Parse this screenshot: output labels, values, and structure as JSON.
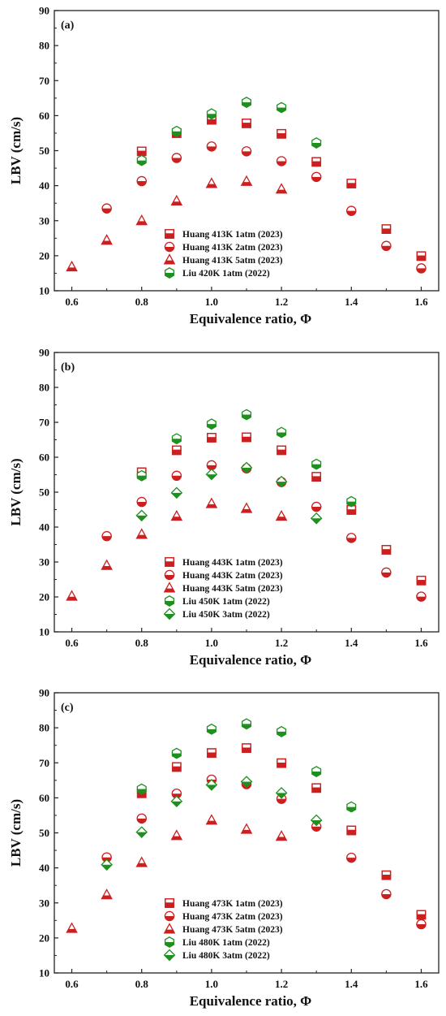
{
  "chart_data": [
    {
      "type": "scatter",
      "panel_label": "(a)",
      "xlabel": "Equivalence ratio, Φ",
      "ylabel": "LBV (cm/s)",
      "xlim": [
        0.55,
        1.65
      ],
      "ylim": [
        10,
        90
      ],
      "xticks": [
        0.6,
        0.8,
        1.0,
        1.2,
        1.4,
        1.6
      ],
      "yticks": [
        10,
        20,
        30,
        40,
        50,
        60,
        70,
        80,
        90
      ],
      "grid": false,
      "legend_position": "bottom-center",
      "series": [
        {
          "name": "Huang 413K 1atm (2023)",
          "marker": "square",
          "color": "#cc1f1f",
          "x": [
            0.8,
            0.9,
            1.0,
            1.1,
            1.2,
            1.3,
            1.4,
            1.5,
            1.6
          ],
          "y": [
            49.8,
            55.0,
            58.8,
            57.8,
            54.8,
            46.8,
            40.6,
            27.6,
            19.9
          ]
        },
        {
          "name": "Huang 413K 2atm (2023)",
          "marker": "circle",
          "color": "#cc1f1f",
          "x": [
            0.7,
            0.8,
            0.9,
            1.0,
            1.1,
            1.2,
            1.3,
            1.4,
            1.5,
            1.6
          ],
          "y": [
            33.5,
            41.3,
            47.9,
            51.2,
            49.8,
            47.0,
            42.5,
            32.8,
            22.8,
            16.4
          ]
        },
        {
          "name": "Huang 413K 5atm (2023)",
          "marker": "triangle",
          "color": "#cc1f1f",
          "x": [
            0.6,
            0.7,
            0.8,
            0.9,
            1.0,
            1.1,
            1.2
          ],
          "y": [
            16.8,
            24.4,
            30.0,
            35.6,
            40.6,
            41.2,
            39.0
          ]
        },
        {
          "name": "Liu 420K 1atm (2022)",
          "marker": "hexagon",
          "color": "#1f8f1f",
          "x": [
            0.8,
            0.9,
            1.0,
            1.1,
            1.2,
            1.3
          ],
          "y": [
            47.2,
            55.5,
            60.5,
            63.8,
            62.3,
            52.2
          ]
        }
      ]
    },
    {
      "type": "scatter",
      "panel_label": "(b)",
      "xlabel": "Equivalence ratio, Φ",
      "ylabel": "LBV (cm/s)",
      "xlim": [
        0.55,
        1.65
      ],
      "ylim": [
        10,
        90
      ],
      "xticks": [
        0.6,
        0.8,
        1.0,
        1.2,
        1.4,
        1.6
      ],
      "yticks": [
        10,
        20,
        30,
        40,
        50,
        60,
        70,
        80,
        90
      ],
      "grid": false,
      "legend_position": "bottom-center",
      "series": [
        {
          "name": "Huang 443K 1atm (2023)",
          "marker": "square",
          "color": "#cc1f1f",
          "x": [
            0.8,
            0.9,
            1.0,
            1.1,
            1.2,
            1.3,
            1.4,
            1.5,
            1.6
          ],
          "y": [
            55.7,
            62.0,
            65.6,
            65.7,
            62.0,
            54.4,
            44.9,
            33.5,
            24.7
          ]
        },
        {
          "name": "Huang 443K 2atm (2023)",
          "marker": "circle",
          "color": "#cc1f1f",
          "x": [
            0.7,
            0.8,
            0.9,
            1.0,
            1.1,
            1.2,
            1.3,
            1.4,
            1.5,
            1.6
          ],
          "y": [
            37.4,
            47.2,
            54.7,
            57.7,
            56.8,
            52.9,
            45.8,
            36.9,
            27.0,
            20.1
          ]
        },
        {
          "name": "Huang 443K 5atm (2023)",
          "marker": "triangle",
          "color": "#cc1f1f",
          "x": [
            0.6,
            0.7,
            0.8,
            0.9,
            1.0,
            1.1,
            1.2
          ],
          "y": [
            20.2,
            29.0,
            37.9,
            43.1,
            46.7,
            45.3,
            43.1
          ]
        },
        {
          "name": "Liu 450K 1atm (2022)",
          "marker": "hexagon",
          "color": "#1f8f1f",
          "x": [
            0.8,
            0.9,
            1.0,
            1.1,
            1.2,
            1.3,
            1.4
          ],
          "y": [
            54.7,
            65.3,
            69.5,
            72.2,
            67.1,
            58.0,
            47.3
          ]
        },
        {
          "name": "Liu 450K 3atm (2022)",
          "marker": "diamond",
          "color": "#1f8f1f",
          "x": [
            0.8,
            0.9,
            1.0,
            1.1,
            1.2,
            1.3
          ],
          "y": [
            43.3,
            49.8,
            55.1,
            57.0,
            53.0,
            42.5
          ]
        }
      ]
    },
    {
      "type": "scatter",
      "panel_label": "(c)",
      "xlabel": "Equivalence ratio, Φ",
      "ylabel": "LBV (cm/s)",
      "xlim": [
        0.55,
        1.65
      ],
      "ylim": [
        10,
        90
      ],
      "xticks": [
        0.6,
        0.8,
        1.0,
        1.2,
        1.4,
        1.6
      ],
      "yticks": [
        10,
        20,
        30,
        40,
        50,
        60,
        70,
        80,
        90
      ],
      "grid": false,
      "legend_position": "bottom-center",
      "series": [
        {
          "name": "Huang 473K 1atm (2023)",
          "marker": "square",
          "color": "#cc1f1f",
          "x": [
            0.8,
            0.9,
            1.0,
            1.1,
            1.2,
            1.3,
            1.4,
            1.5,
            1.6
          ],
          "y": [
            61.3,
            68.8,
            72.8,
            74.2,
            69.9,
            62.8,
            50.7,
            37.9,
            26.6
          ]
        },
        {
          "name": "Huang 473K 2atm (2023)",
          "marker": "circle",
          "color": "#cc1f1f",
          "x": [
            0.7,
            0.8,
            0.9,
            1.0,
            1.1,
            1.2,
            1.3,
            1.4,
            1.5,
            1.6
          ],
          "y": [
            43.0,
            54.1,
            61.2,
            65.2,
            63.9,
            59.7,
            51.8,
            42.9,
            32.5,
            23.9
          ]
        },
        {
          "name": "Huang 473K 5atm (2023)",
          "marker": "triangle",
          "color": "#cc1f1f",
          "x": [
            0.6,
            0.7,
            0.8,
            0.9,
            1.0,
            1.1,
            1.2
          ],
          "y": [
            22.7,
            32.3,
            41.5,
            49.2,
            53.6,
            51.0,
            49.0
          ]
        },
        {
          "name": "Liu 480K 1atm (2022)",
          "marker": "hexagon",
          "color": "#1f8f1f",
          "x": [
            0.8,
            0.9,
            1.0,
            1.1,
            1.2,
            1.3,
            1.4
          ],
          "y": [
            62.5,
            72.7,
            79.6,
            81.1,
            78.9,
            67.5,
            57.4
          ]
        },
        {
          "name": "Liu 480K 3atm (2022)",
          "marker": "diamond",
          "color": "#1f8f1f",
          "x": [
            0.7,
            0.8,
            0.9,
            1.0,
            1.1,
            1.2,
            1.3
          ],
          "y": [
            40.9,
            50.2,
            59.0,
            63.7,
            64.6,
            61.4,
            53.6
          ]
        }
      ]
    }
  ]
}
